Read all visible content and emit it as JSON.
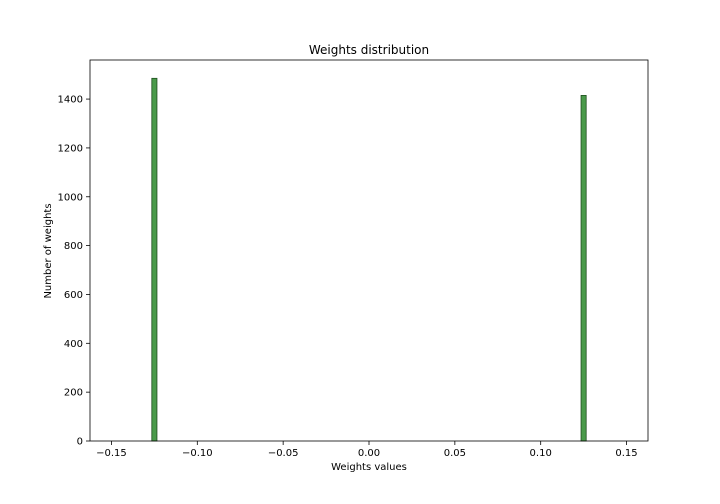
{
  "chart_data": {
    "type": "bar",
    "title": "Weights distribution",
    "xlabel": "Weights values",
    "ylabel": "Number of weights",
    "xlim": [
      -0.1625,
      0.1625
    ],
    "ylim": [
      0,
      1560
    ],
    "x_ticks": [
      -0.15,
      -0.1,
      -0.05,
      0.0,
      0.05,
      0.1,
      0.15
    ],
    "x_tick_labels": [
      "−0.15",
      "−0.10",
      "−0.05",
      "0.00",
      "0.05",
      "0.10",
      "0.15"
    ],
    "y_ticks": [
      0,
      200,
      400,
      600,
      800,
      1000,
      1200,
      1400
    ],
    "y_tick_labels": [
      "0",
      "200",
      "400",
      "600",
      "800",
      "1000",
      "1200",
      "1400"
    ],
    "grid": false,
    "colors": {
      "bar_fill": "#4a9a4a",
      "bar_edge": "#1e4e1e"
    },
    "bins": [
      {
        "x0": -0.1265,
        "x1": -0.1235,
        "count": 1485
      },
      {
        "x0": 0.1235,
        "x1": 0.1265,
        "count": 1415
      }
    ]
  }
}
